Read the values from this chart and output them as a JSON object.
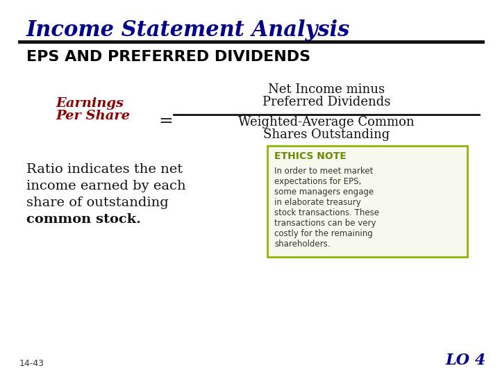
{
  "title": "Income Statement Analysis",
  "subtitle": "EPS AND PREFERRED DIVIDENDS",
  "title_color": "#00008B",
  "subtitle_color": "#000000",
  "bg_color": "#ffffff",
  "label_left_line1": "Earnings",
  "label_left_line2": "Per Share",
  "label_left_color": "#8B0000",
  "equals_sign": "=",
  "numerator_line1": "Net Income minus",
  "numerator_line2": "Preferred Dividends",
  "denominator_line1": "Weighted-Average Common",
  "denominator_line2": "Shares Outstanding",
  "ratio_lines": [
    "Ratio indicates the net",
    "income earned by each",
    "share of outstanding"
  ],
  "ratio_bold_line": "common stock.",
  "ethics_title": "ETHICS NOTE",
  "ethics_body_lines": [
    "In order to meet market",
    "expectations for EPS,",
    "some managers engage",
    "in elaborate treasury",
    "stock transactions. These",
    "transactions can be very",
    "costly for the remaining",
    "shareholders."
  ],
  "ethics_title_color": "#6b8c00",
  "ethics_border_color": "#8db800",
  "ethics_bg_color": "#f7f9ee",
  "footer_left": "14-43",
  "footer_right": "LO 4",
  "footer_right_color": "#00008B"
}
